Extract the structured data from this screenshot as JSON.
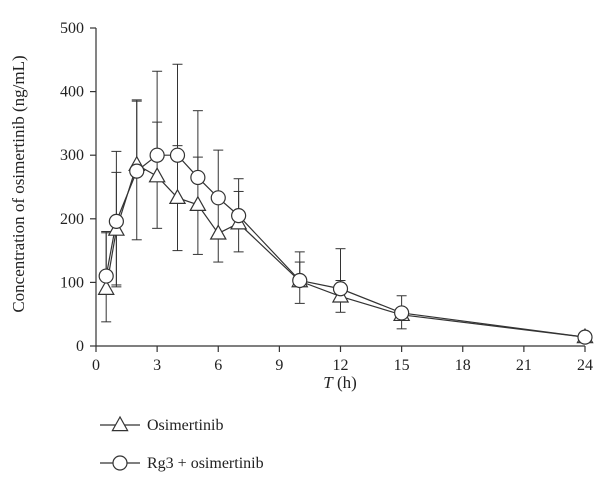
{
  "chart_data": {
    "type": "line",
    "xlabel": {
      "italic": "T",
      "rest": " (h)"
    },
    "ylabel": "Concentration of osimertinib (ng/mL)",
    "xlim": [
      0,
      24
    ],
    "ylim": [
      0,
      500
    ],
    "x_ticks": [
      0,
      3,
      6,
      9,
      12,
      15,
      18,
      21,
      24
    ],
    "y_ticks": [
      0,
      100,
      200,
      300,
      400,
      500
    ],
    "grid": false,
    "legend_position": "bottom-left",
    "series": [
      {
        "name": "Osimertinib",
        "marker": "triangle",
        "x": [
          0.5,
          1,
          2,
          3,
          4,
          5,
          6,
          7,
          10,
          12,
          15,
          24
        ],
        "y": [
          90,
          183,
          285,
          267,
          233,
          222,
          177,
          193,
          102,
          78,
          49,
          14
        ],
        "error_upper": [
          90,
          90,
          102,
          85,
          82,
          75,
          55,
          50,
          30,
          25,
          30,
          5
        ],
        "error_lower": [
          52,
          90,
          118,
          82,
          83,
          78,
          45,
          45,
          35,
          25,
          22,
          5
        ]
      },
      {
        "name": "Rg3 + osimertinib",
        "marker": "circle",
        "x": [
          0.5,
          1,
          2,
          3,
          4,
          5,
          6,
          7,
          10,
          12,
          15,
          24
        ],
        "y": [
          110,
          196,
          275,
          300,
          300,
          265,
          233,
          205,
          103,
          90,
          52,
          14
        ],
        "error_upper": [
          68,
          110,
          110,
          132,
          143,
          105,
          75,
          58,
          45,
          63,
          0,
          6
        ],
        "error_lower": [
          0,
          100,
          0,
          0,
          0,
          0,
          0,
          0,
          0,
          0,
          0,
          0
        ]
      }
    ]
  }
}
